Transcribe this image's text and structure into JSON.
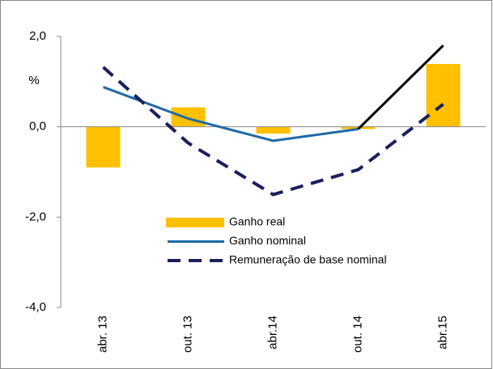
{
  "chart_data": {
    "type": "bar-line",
    "y_label": "%",
    "categories": [
      "abr. 13",
      "out. 13",
      "abr.14",
      "out. 14",
      "abr.15"
    ],
    "ylim": [
      -4,
      2
    ],
    "yticks": [
      {
        "value": 2,
        "label": "2,0"
      },
      {
        "value": 0,
        "label": "0,0"
      },
      {
        "value": -2,
        "label": "-2,0"
      },
      {
        "value": -4,
        "label": "-4,0"
      }
    ],
    "series": [
      {
        "name": "Ganho real",
        "type": "bar",
        "color": "#ffc000",
        "values": [
          -0.9,
          0.43,
          -0.15,
          -0.05,
          1.39
        ]
      },
      {
        "name": "Ganho nominal",
        "type": "line",
        "color": "#1f6aa5",
        "values": [
          0.88,
          0.18,
          -0.31,
          -0.05,
          null
        ]
      },
      {
        "name": "Remuneração de base nominal",
        "type": "dashed",
        "color": "#1a1f5c",
        "values": [
          1.32,
          -0.36,
          -1.5,
          -0.95,
          0.5
        ]
      },
      {
        "type": "line",
        "color": "#000000",
        "values": [
          null,
          null,
          null,
          -0.05,
          1.8
        ]
      }
    ]
  }
}
